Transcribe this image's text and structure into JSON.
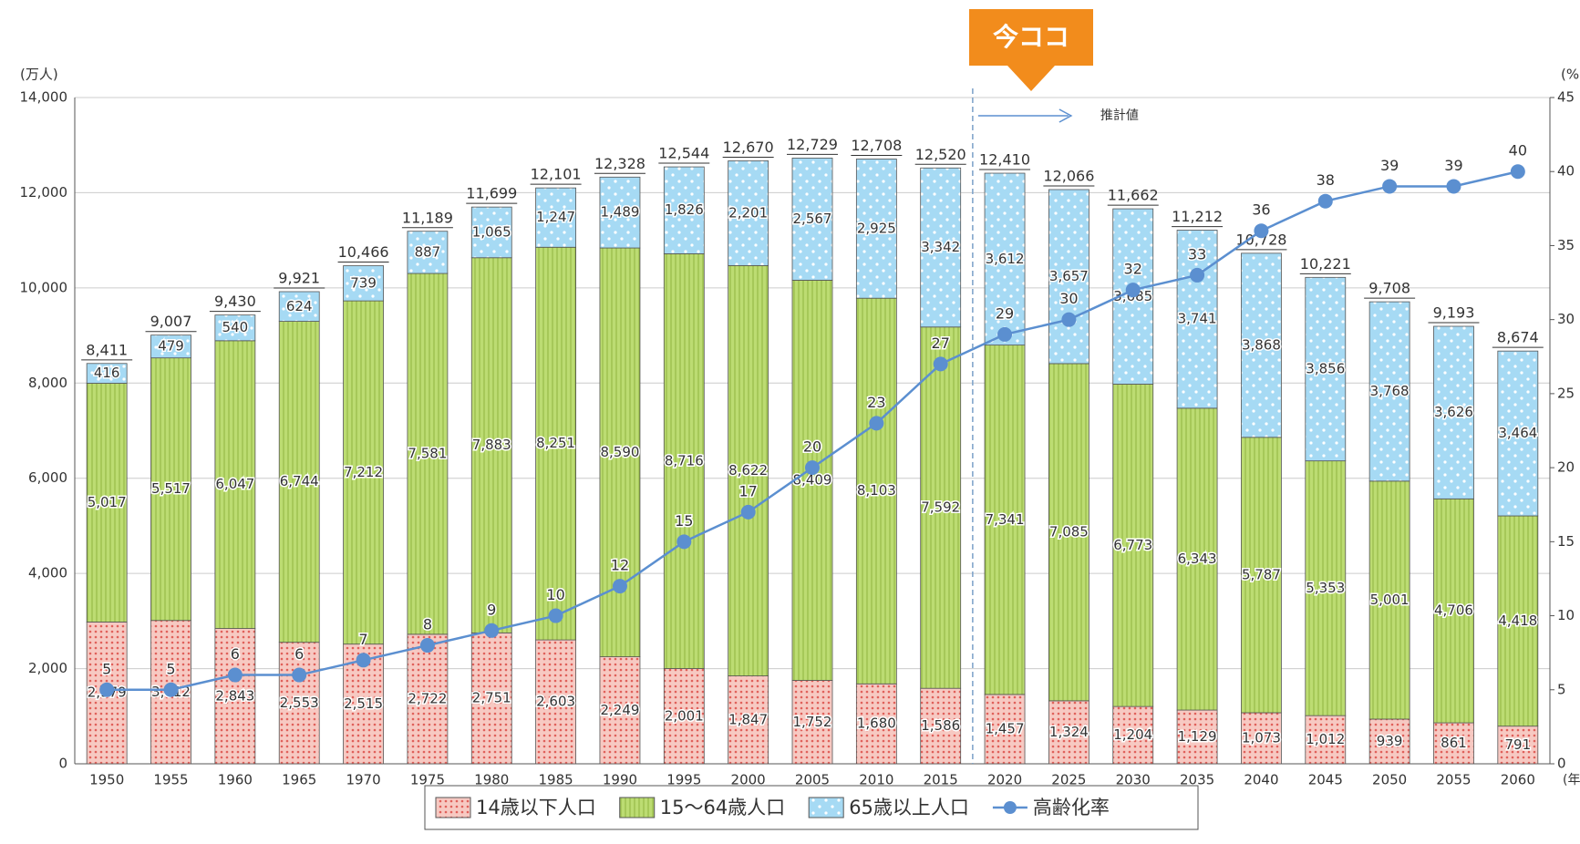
{
  "chart_data": {
    "type": "bar",
    "stacked": true,
    "categories": [
      "1950",
      "1955",
      "1960",
      "1965",
      "1970",
      "1975",
      "1980",
      "1985",
      "1990",
      "1995",
      "2000",
      "2005",
      "2010",
      "2015",
      "2020",
      "2025",
      "2030",
      "2035",
      "2040",
      "2045",
      "2050",
      "2055",
      "2060"
    ],
    "y_unit": "(万人)",
    "y2_unit": "(%)",
    "x_unit": "(年)",
    "annotation": "今ココ",
    "projection_label": "推計値",
    "projection_from": 14,
    "ylim": [
      0,
      14000
    ],
    "yticks": [
      0,
      {
        "value": 2000,
        "label": "2,000"
      },
      {
        "value": 4000,
        "label": "4,000"
      },
      {
        "value": 6000,
        "label": "6,000"
      },
      {
        "value": 8000,
        "label": "8,000"
      },
      {
        "value": 10000,
        "label": "10,000"
      },
      {
        "value": 12000,
        "label": "12,000"
      },
      {
        "value": 14000,
        "label": "14,000"
      }
    ],
    "y2lim": [
      0,
      45
    ],
    "y2ticks": [
      0,
      5,
      10,
      15,
      20,
      25,
      30,
      35,
      40,
      45
    ],
    "grid": true,
    "series": [
      {
        "name": "14歳以下人口",
        "color": "#f4b8b0",
        "type": "bar",
        "values": [
          2979,
          3012,
          2843,
          2553,
          2515,
          2722,
          2751,
          2603,
          2249,
          2001,
          1847,
          1752,
          1680,
          1586,
          1457,
          1324,
          1204,
          1129,
          1073,
          1012,
          939,
          861,
          791
        ],
        "value_labels": [
          "2,979",
          "3,012",
          "2,843",
          "2,553",
          "2,515",
          "2,722",
          "2,751",
          "2,603",
          "2,249",
          "2,001",
          "1,847",
          "1,752",
          "1,680",
          "1,586",
          "1,457",
          "1,324",
          "1,204",
          "1,129",
          "1,073",
          "1,012",
          "939",
          "861",
          "791"
        ]
      },
      {
        "name": "15～64歳人口",
        "color": "#b6d86a",
        "type": "bar",
        "values": [
          5017,
          5517,
          6047,
          6744,
          7212,
          7581,
          7883,
          8251,
          8590,
          8716,
          8622,
          8409,
          8103,
          7592,
          7341,
          7085,
          6773,
          6343,
          5787,
          5353,
          5001,
          4706,
          4418
        ],
        "value_labels": [
          "5,017",
          "5,517",
          "6,047",
          "6,744",
          "7,212",
          "7,581",
          "7,883",
          "8,251",
          "8,590",
          "8,716",
          "8,622",
          "8,409",
          "8,103",
          "7,592",
          "7,341",
          "7,085",
          "6,773",
          "6,343",
          "5,787",
          "5,353",
          "5,001",
          "4,706",
          "4,418"
        ]
      },
      {
        "name": "65歳以上人口",
        "color": "#a6daf4",
        "type": "bar",
        "values": [
          416,
          479,
          540,
          624,
          739,
          887,
          1065,
          1247,
          1489,
          1826,
          2201,
          2567,
          2925,
          3342,
          3612,
          3657,
          3685,
          3741,
          3868,
          3856,
          3768,
          3626,
          3464
        ],
        "value_labels": [
          "416",
          "479",
          "540",
          "624",
          "739",
          "887",
          "1,065",
          "1,247",
          "1,489",
          "1,826",
          "2,201",
          "2,567",
          "2,925",
          "3,342",
          "3,612",
          "3,657",
          "3,685",
          "3,741",
          "3,868",
          "3,856",
          "3,768",
          "3,626",
          "3,464"
        ]
      },
      {
        "name": "高齢化率",
        "color": "#5b8fd0",
        "type": "line",
        "axis": "y2",
        "values": [
          5,
          5,
          6,
          6,
          7,
          8,
          9,
          10,
          12,
          15,
          17,
          20,
          23,
          27,
          29,
          30,
          32,
          33,
          36,
          38,
          39,
          39,
          40
        ]
      }
    ],
    "totals": {
      "values": [
        8411,
        9007,
        9430,
        9921,
        10466,
        11189,
        11699,
        12101,
        12328,
        12544,
        12670,
        12729,
        12708,
        12520,
        12410,
        12066,
        11662,
        11212,
        10728,
        10221,
        9708,
        9193,
        8674
      ],
      "value_labels": [
        "8,411",
        "9,007",
        "9,430",
        "9,921",
        "10,466",
        "11,189",
        "11,699",
        "12,101",
        "12,328",
        "12,544",
        "12,670",
        "12,729",
        "12,708",
        "12,520",
        "12,410",
        "12,066",
        "11,662",
        "11,212",
        "10,728",
        "10,221",
        "9,708",
        "9,193",
        "8,674"
      ]
    }
  }
}
